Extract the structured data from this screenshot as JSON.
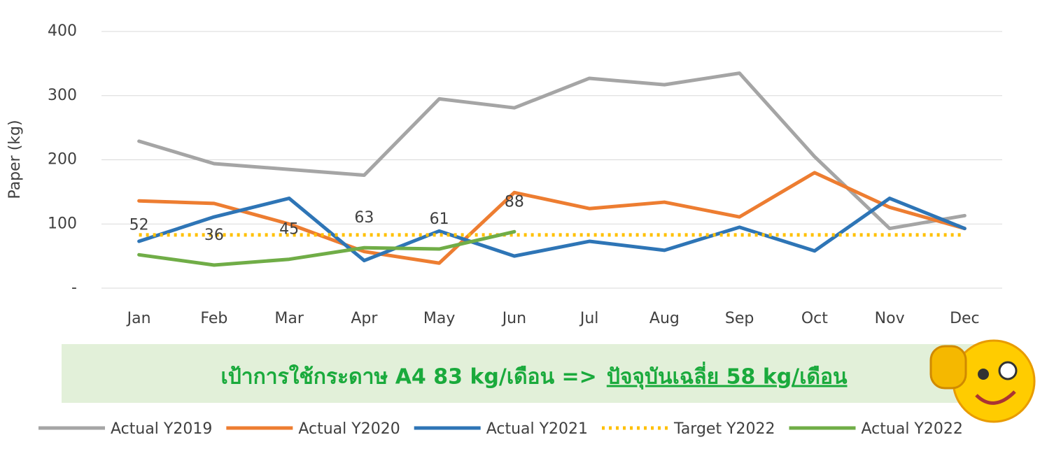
{
  "chart_data": {
    "type": "line",
    "y_label": "Paper (kg)",
    "categories": [
      "Jan",
      "Feb",
      "Mar",
      "Apr",
      "May",
      "Jun",
      "Jul",
      "Aug",
      "Sep",
      "Oct",
      "Nov",
      "Dec"
    ],
    "ylim": [
      0,
      400
    ],
    "yticks": [
      {
        "value": 0,
        "label": "-"
      },
      100,
      200,
      300,
      400
    ],
    "grid": true,
    "legend": "bottom",
    "series": [
      {
        "name": "Actual Y2019",
        "color": "#a5a5a5",
        "style": "solid",
        "values": [
          229,
          194,
          185,
          176,
          295,
          281,
          327,
          317,
          335,
          205,
          93,
          113
        ]
      },
      {
        "name": "Actual Y2020",
        "color": "#ed7d31",
        "style": "solid",
        "values": [
          136,
          132,
          100,
          57,
          39,
          149,
          124,
          134,
          111,
          180,
          126,
          93
        ]
      },
      {
        "name": "Actual Y2021",
        "color": "#2e75b6",
        "style": "solid",
        "values": [
          73,
          111,
          140,
          43,
          89,
          50,
          73,
          59,
          95,
          58,
          140,
          93
        ]
      },
      {
        "name": "Target Y2022",
        "color": "#ffc000",
        "style": "dotted",
        "values": [
          83,
          83,
          83,
          83,
          83,
          83,
          83,
          83,
          83,
          83,
          83,
          83
        ]
      },
      {
        "name": "Actual Y2022",
        "color": "#70ad47",
        "style": "solid",
        "values": [
          52,
          36,
          45,
          63,
          61,
          88,
          null,
          null,
          null,
          null,
          null,
          null
        ],
        "data_labels": true
      }
    ],
    "annotation": {
      "text": "เป้าการใช้กระดาษ A4 83 kg/เดือน  =>",
      "highlight": "ปัจจุบันเฉลี่ย 58 kg/เดือน"
    }
  }
}
